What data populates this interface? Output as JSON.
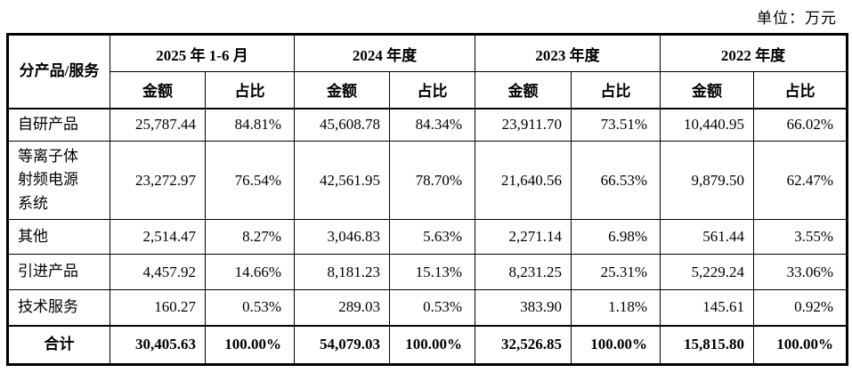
{
  "unit_label": "单位：万元",
  "table": {
    "corner_header": "分产品/服务",
    "period_headers": [
      "2025 年 1-6 月",
      "2024 年度",
      "2023 年度",
      "2022 年度"
    ],
    "sub_headers": {
      "amount": "金额",
      "ratio": "占比"
    },
    "rows": [
      {
        "label": "自研产品",
        "values": [
          "25,787.44",
          "84.81%",
          "45,608.78",
          "84.34%",
          "23,911.70",
          "73.51%",
          "10,440.95",
          "66.02%"
        ]
      },
      {
        "label": "等离子体射频电源系统",
        "values": [
          "23,272.97",
          "76.54%",
          "42,561.95",
          "78.70%",
          "21,640.56",
          "66.53%",
          "9,879.50",
          "62.47%"
        ]
      },
      {
        "label": "其他",
        "values": [
          "2,514.47",
          "8.27%",
          "3,046.83",
          "5.63%",
          "2,271.14",
          "6.98%",
          "561.44",
          "3.55%"
        ]
      },
      {
        "label": "引进产品",
        "values": [
          "4,457.92",
          "14.66%",
          "8,181.23",
          "15.13%",
          "8,231.25",
          "25.31%",
          "5,229.24",
          "33.06%"
        ]
      },
      {
        "label": "技术服务",
        "values": [
          "160.27",
          "0.53%",
          "289.03",
          "0.53%",
          "383.90",
          "1.18%",
          "145.61",
          "0.92%"
        ]
      }
    ],
    "total_row": {
      "label": "合计",
      "values": [
        "30,405.63",
        "100.00%",
        "54,079.03",
        "100.00%",
        "32,526.85",
        "100.00%",
        "15,815.80",
        "100.00%"
      ]
    }
  }
}
